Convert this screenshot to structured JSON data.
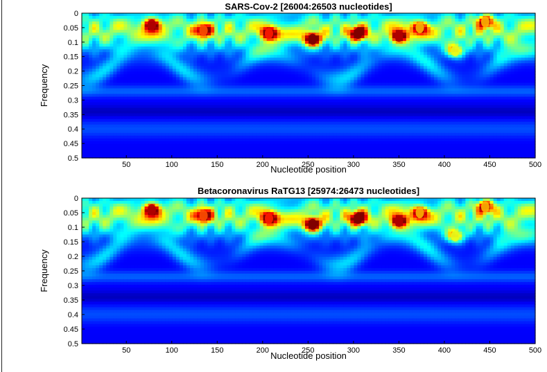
{
  "colors": {
    "low": "#00008f",
    "mid": "#00c8ff",
    "high": "#ff1000",
    "accent_light": "#80ffff"
  },
  "chart_data": [
    {
      "type": "heatmap",
      "title": "SARS-Cov-2 [26004:26503 nucleotides]",
      "xlabel": "Nucleotide position",
      "ylabel": "Frequency",
      "xlim": [
        1,
        500
      ],
      "ylim": [
        0,
        0.5
      ],
      "y_reversed": true,
      "grid": false,
      "colormap": "jet",
      "xticks": [
        50,
        100,
        150,
        200,
        250,
        300,
        350,
        400,
        450,
        500
      ],
      "yticks": [
        0,
        0.05,
        0.1,
        0.15,
        0.2,
        0.25,
        0.3,
        0.35,
        0.4,
        0.45,
        0.5
      ],
      "hotspots": [
        {
          "x": 78,
          "y": 0.04,
          "value": 0.95
        },
        {
          "x": 135,
          "y": 0.06,
          "value": 0.8
        },
        {
          "x": 207,
          "y": 0.07,
          "value": 0.85
        },
        {
          "x": 255,
          "y": 0.09,
          "value": 1.0
        },
        {
          "x": 305,
          "y": 0.07,
          "value": 1.0
        },
        {
          "x": 350,
          "y": 0.08,
          "value": 0.95
        },
        {
          "x": 373,
          "y": 0.05,
          "value": 0.7
        },
        {
          "x": 412,
          "y": 0.13,
          "value": 0.6
        },
        {
          "x": 445,
          "y": 0.03,
          "value": 0.7
        }
      ]
    },
    {
      "type": "heatmap",
      "title": "Betacoronavirus RaTG13 [25974:26473 nucleotides]",
      "xlabel": "Nucleotide position",
      "ylabel": "Frequency",
      "xlim": [
        1,
        500
      ],
      "ylim": [
        0,
        0.5
      ],
      "y_reversed": true,
      "grid": false,
      "colormap": "jet",
      "xticks": [
        50,
        100,
        150,
        200,
        250,
        300,
        350,
        400,
        450,
        500
      ],
      "yticks": [
        0,
        0.05,
        0.1,
        0.15,
        0.2,
        0.25,
        0.3,
        0.35,
        0.4,
        0.45,
        0.5
      ],
      "hotspots": [
        {
          "x": 78,
          "y": 0.04,
          "value": 0.95
        },
        {
          "x": 135,
          "y": 0.06,
          "value": 0.8
        },
        {
          "x": 207,
          "y": 0.07,
          "value": 0.85
        },
        {
          "x": 255,
          "y": 0.09,
          "value": 1.0
        },
        {
          "x": 305,
          "y": 0.07,
          "value": 1.0
        },
        {
          "x": 350,
          "y": 0.08,
          "value": 0.95
        },
        {
          "x": 373,
          "y": 0.05,
          "value": 0.7
        },
        {
          "x": 412,
          "y": 0.13,
          "value": 0.6
        },
        {
          "x": 445,
          "y": 0.03,
          "value": 0.7
        }
      ]
    }
  ]
}
